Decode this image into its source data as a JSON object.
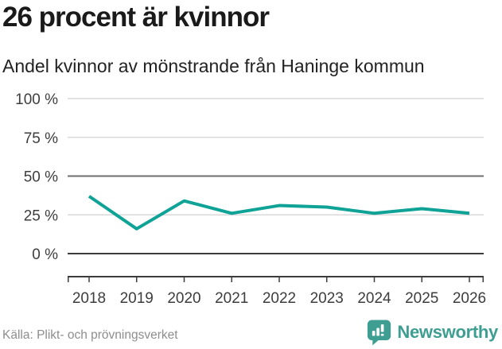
{
  "header": {
    "title": "26 procent är kvinnor",
    "subtitle": "Andel kvinnor av mönstrande från Haninge kommun"
  },
  "chart_data": {
    "type": "line",
    "title": "26 procent är kvinnor",
    "subtitle": "Andel kvinnor av mönstrande från Haninge kommun",
    "categories": [
      "2018",
      "2019",
      "2020",
      "2021",
      "2022",
      "2023",
      "2024",
      "2025",
      "2026"
    ],
    "series": [
      {
        "name": "Andel kvinnor av mönstrande",
        "values": [
          37,
          16,
          34,
          26,
          31,
          30,
          26,
          29,
          26
        ]
      }
    ],
    "unit": "%",
    "ylim": [
      0,
      100
    ],
    "yticks": [
      0,
      25,
      50,
      75,
      100
    ],
    "ytick_suffix": " %",
    "grid": "horizontal",
    "reference_line": 50,
    "legend": "none",
    "line_color": "#0fa296",
    "gridline_color": "#d9d9d9",
    "reference_gridline_color": "#6e6e6e",
    "axis_color": "#3c3c3c",
    "tick_label_color": "#3d3d3d"
  },
  "footer": {
    "source": "Källa: Plikt- och prövningsverket",
    "brand": "Newsworthy",
    "brand_color": "#3e9e91",
    "brand_icon": "speech-bubble-bar-chart"
  }
}
